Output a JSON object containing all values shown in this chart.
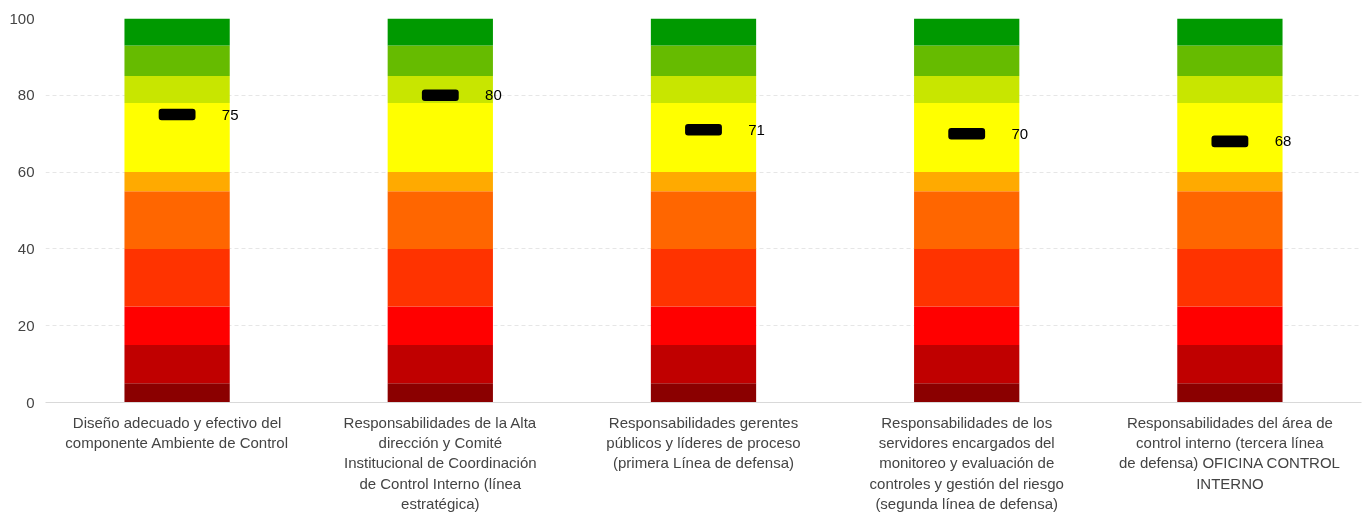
{
  "chart_data": {
    "type": "bar",
    "stacked": true,
    "categories": [
      "Diseño adecuado y efectivo del componente Ambiente de Control",
      "Responsabilidades de la Alta dirección y Comité Institucional de Coordinación de Control Interno (línea estratégica)",
      "Responsabilidades gerentes públicos y líderes de proceso (primera Línea de defensa)",
      "Responsabilidades de los servidores encargados del monitoreo y evaluación de controles y gestión del riesgo (segunda línea de defensa)",
      "Responsabilidades del área de control interno (tercera línea de defensa) OFICINA CONTROL INTERNO"
    ],
    "series": [
      {
        "color": "#8b0000",
        "values": [
          5,
          5,
          5,
          5,
          5
        ]
      },
      {
        "color": "#c00000",
        "values": [
          10,
          10,
          10,
          10,
          10
        ]
      },
      {
        "color": "#ff0000",
        "values": [
          10,
          10,
          10,
          10,
          10
        ]
      },
      {
        "color": "#ff3300",
        "values": [
          15,
          15,
          15,
          15,
          15
        ]
      },
      {
        "color": "#ff6600",
        "values": [
          15,
          15,
          15,
          15,
          15
        ]
      },
      {
        "color": "#ffaa00",
        "values": [
          5,
          5,
          5,
          5,
          5
        ]
      },
      {
        "color": "#ffff00",
        "values": [
          18,
          18,
          18,
          18,
          18
        ]
      },
      {
        "color": "#c8e600",
        "values": [
          7,
          7,
          7,
          7,
          7
        ]
      },
      {
        "color": "#66bb00",
        "values": [
          8,
          8,
          8,
          8,
          8
        ]
      },
      {
        "color": "#009900",
        "values": [
          7,
          7,
          7,
          7,
          7
        ]
      },
      {
        "type": "scatter",
        "color": "#000000",
        "values": [
          75,
          80,
          71,
          70,
          68
        ],
        "value_labels": [
          "75",
          "80",
          "71",
          "70",
          "68"
        ]
      }
    ],
    "ylim": [
      0,
      100
    ],
    "yticks": [
      0,
      20,
      40,
      60,
      80,
      100
    ],
    "grid": "y"
  }
}
